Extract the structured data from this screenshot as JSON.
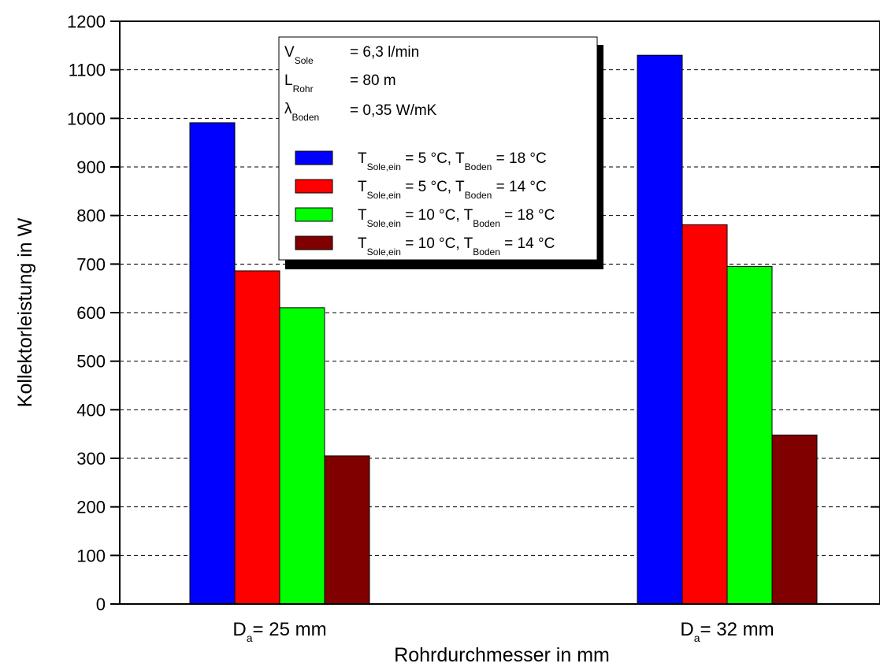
{
  "chart_data": {
    "type": "bar",
    "ylabel": "Kollektorleistung in W",
    "xlabel": "Rohrdurchmesser in mm",
    "ylim": [
      0,
      1200
    ],
    "yticks": [
      0,
      100,
      200,
      300,
      400,
      500,
      600,
      700,
      800,
      900,
      1000,
      1100,
      1200
    ],
    "grid": "horizontal-dashed",
    "legend_position": "top-center",
    "categories": [
      {
        "main": "D",
        "sub": "a",
        "rest": "= 25 mm"
      },
      {
        "main": "D",
        "sub": "a",
        "rest": "= 32 mm"
      }
    ],
    "series": [
      {
        "color": "#0000ff",
        "values": [
          991,
          1130
        ],
        "legend": {
          "t1": "T",
          "s1": "Sole,ein",
          "m1": "=   5 °C,",
          "t2": "T",
          "s2": "Boden",
          "m2": "= 18 °C"
        }
      },
      {
        "color": "#ff0000",
        "values": [
          686,
          781
        ],
        "legend": {
          "t1": "T",
          "s1": "Sole,ein",
          "m1": "=   5 °C,",
          "t2": "T",
          "s2": "Boden",
          "m2": "= 14 °C"
        }
      },
      {
        "color": "#00ff00",
        "values": [
          610,
          695
        ],
        "legend": {
          "t1": "T",
          "s1": "Sole,ein",
          "m1": "= 10 °C,",
          "t2": "T",
          "s2": "Boden",
          "m2": "= 18 °C"
        }
      },
      {
        "color": "#800000",
        "values": [
          305,
          348
        ],
        "legend": {
          "t1": "T",
          "s1": "Sole,ein",
          "m1": "= 10 °C,",
          "t2": "T",
          "s2": "Boden",
          "m2": "= 14 °C"
        }
      }
    ],
    "parameters": [
      {
        "symbol": "V",
        "sub": "Sole",
        "value": "= 6,3 l/min"
      },
      {
        "symbol": "L",
        "sub": "Rohr",
        "value": "= 80 m"
      },
      {
        "symbol": "λ",
        "sub": "Boden",
        "value": "= 0,35 W/mK"
      }
    ]
  }
}
